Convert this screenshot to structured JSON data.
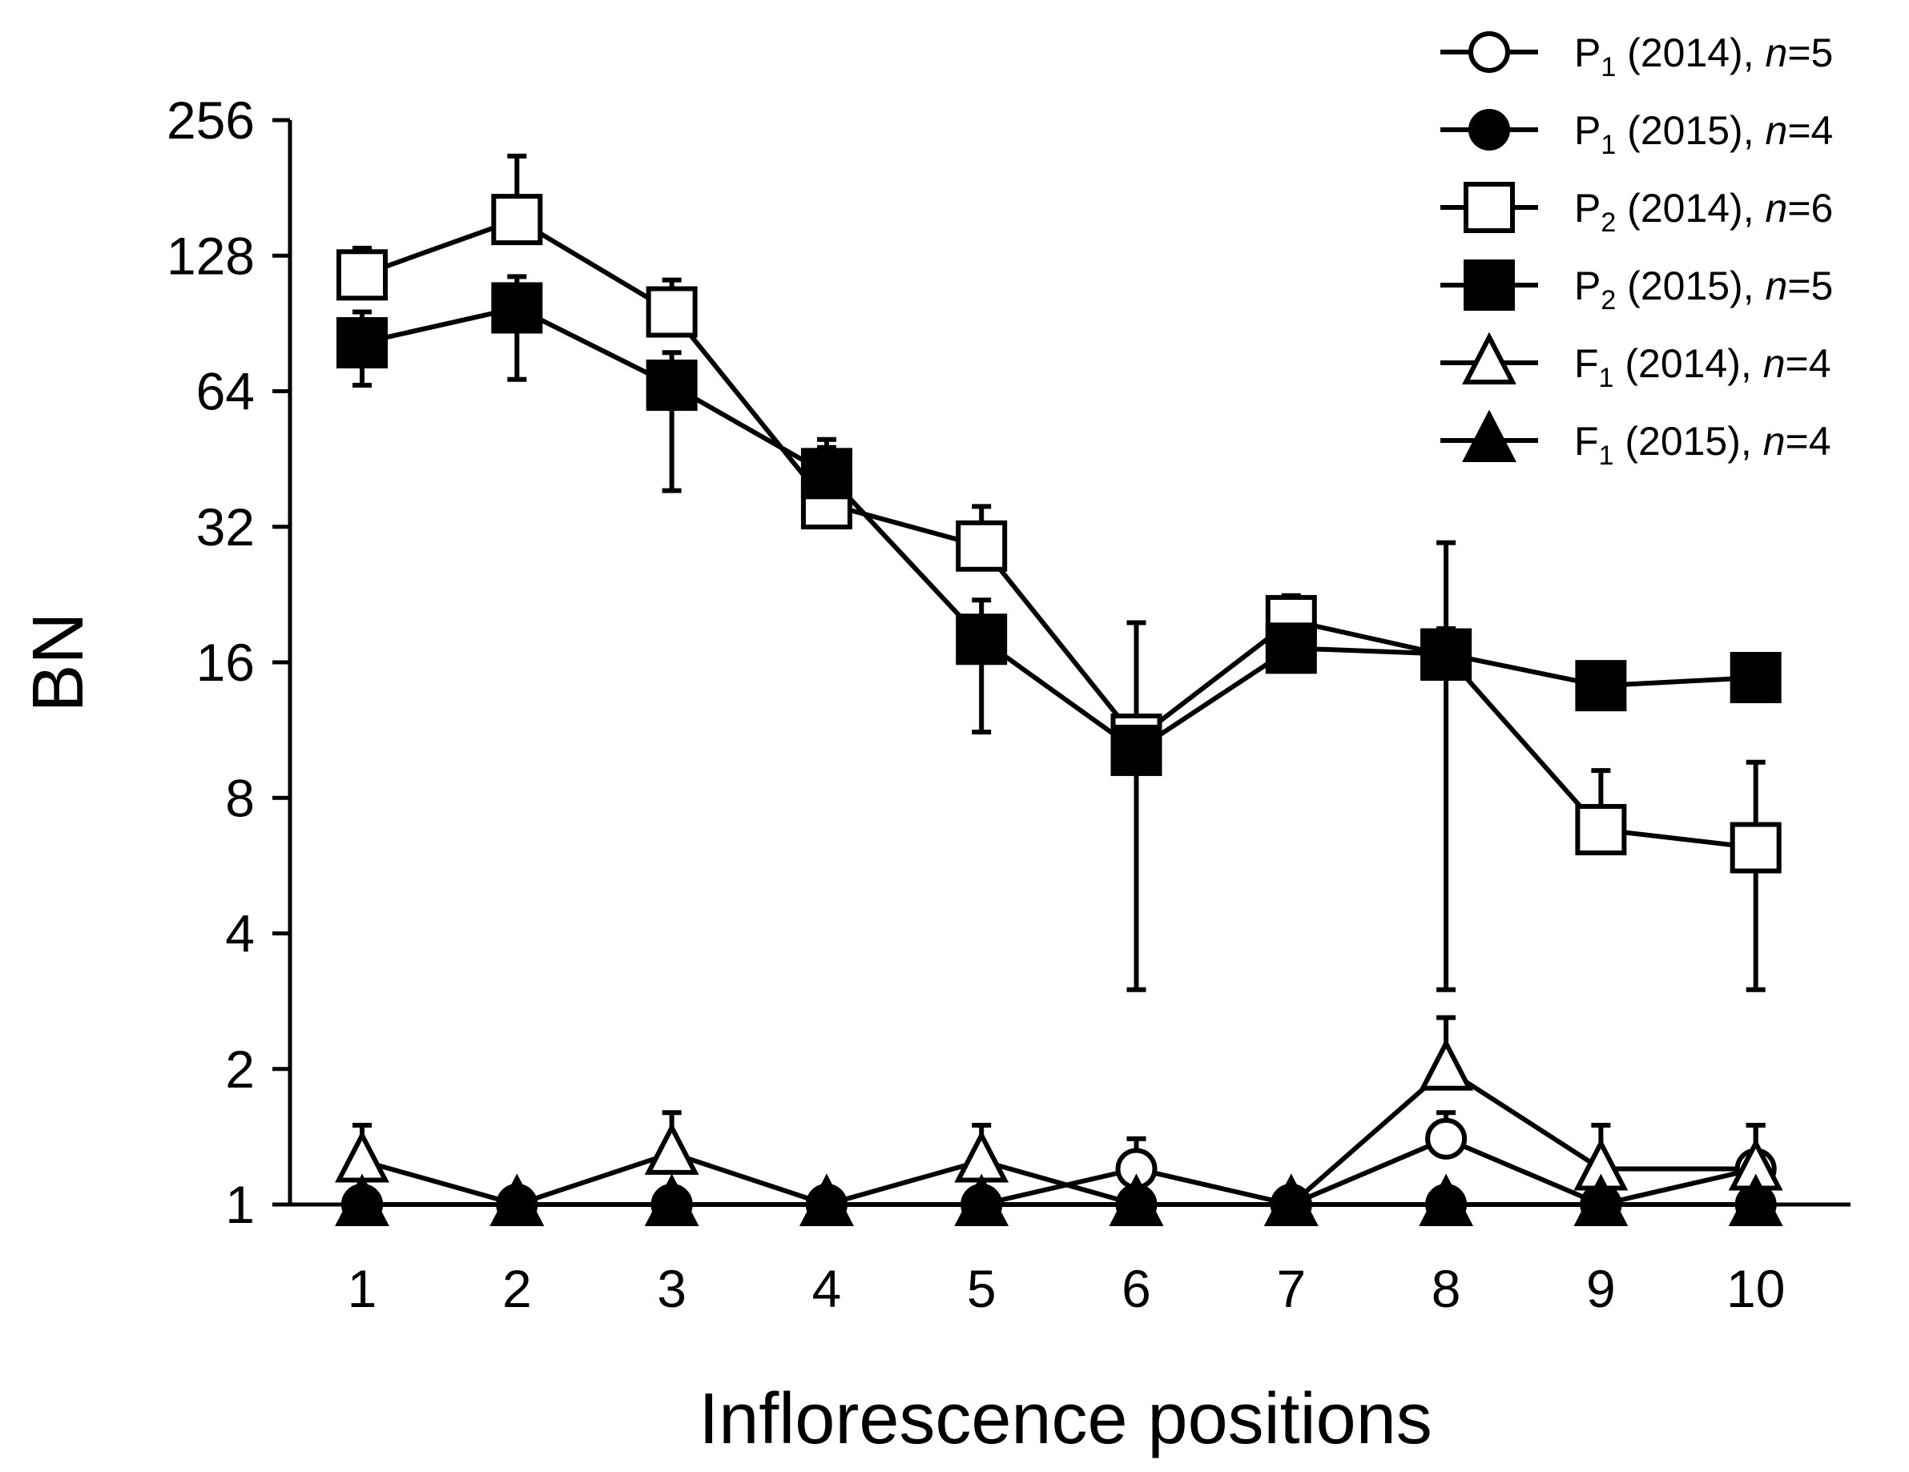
{
  "chart_data": {
    "type": "line",
    "title": "",
    "xlabel": "Inflorescence positions",
    "ylabel": "BN",
    "y_scale": "log2",
    "ylim": [
      1,
      256
    ],
    "yticks": [
      1,
      2,
      4,
      8,
      16,
      32,
      64,
      128,
      256
    ],
    "ytick_labels": [
      "1",
      "2",
      "4",
      "8",
      "16",
      "32",
      "64",
      "128",
      "256"
    ],
    "x": [
      1,
      2,
      3,
      4,
      5,
      6,
      7,
      8,
      9,
      10
    ],
    "xtick_labels": [
      "1",
      "2",
      "3",
      "4",
      "5",
      "6",
      "7",
      "8",
      "9",
      "10"
    ],
    "legend_position": "top-right",
    "series": [
      {
        "key": "p1-2014",
        "name": "P",
        "sub": "1",
        "year": "(2014),",
        "n_label": "n",
        "n_value": "=5",
        "marker": "circle",
        "filled": false,
        "values": [
          1,
          1,
          1,
          1,
          1,
          1.2,
          1,
          1.4,
          1,
          1.2
        ],
        "err_up": [
          null,
          null,
          null,
          null,
          null,
          1.4,
          null,
          1.6,
          null,
          1.5
        ]
      },
      {
        "key": "p1-2015",
        "name": "P",
        "sub": "1",
        "year": "(2015),",
        "n_label": "n",
        "n_value": "=4",
        "marker": "circle",
        "filled": true,
        "values": [
          1,
          1,
          1,
          1,
          1,
          1,
          1,
          1,
          1,
          1
        ],
        "err_up": [
          null,
          null,
          null,
          null,
          null,
          null,
          null,
          null,
          null,
          null
        ]
      },
      {
        "key": "p2-2014",
        "name": "P",
        "sub": "2",
        "year": "(2014),",
        "n_label": "n",
        "n_value": "=6",
        "marker": "square",
        "filled": false,
        "values": [
          116,
          154,
          96,
          36,
          29,
          10.8,
          19.8,
          16.6,
          6.8,
          6.2
        ],
        "err_up": [
          133,
          213,
          113,
          48,
          35.5,
          19.6,
          22.5,
          29.5,
          9.2,
          9.6
        ],
        "err_down": [
          null,
          null,
          null,
          null,
          null,
          null,
          null,
          null,
          null,
          3
        ]
      },
      {
        "key": "p2-2015",
        "name": "P",
        "sub": "2",
        "year": "(2015),",
        "n_label": "n",
        "n_value": "=5",
        "marker": "square",
        "filled": true,
        "values": [
          82,
          98,
          66,
          42,
          18,
          10.2,
          17.2,
          16.7,
          14.2,
          14.8
        ],
        "err_up": [
          96,
          115,
          78,
          50,
          22,
          12,
          19.5,
          19,
          15.8,
          16
        ],
        "err_down": [
          66,
          68,
          38.5,
          36,
          11.2,
          3,
          15.5,
          3,
          13,
          13.6
        ]
      },
      {
        "key": "f1-2014",
        "name": "F",
        "sub": "1",
        "year": "(2014),",
        "n_label": "n",
        "n_value": "=4",
        "marker": "triangle",
        "filled": false,
        "values": [
          1.25,
          1,
          1.3,
          1,
          1.25,
          1,
          1,
          2,
          1.2,
          1.2
        ],
        "err_up": [
          1.5,
          null,
          1.6,
          null,
          1.5,
          null,
          null,
          2.6,
          1.5,
          1.5
        ]
      },
      {
        "key": "f1-2015",
        "name": "F",
        "sub": "1",
        "year": "(2015),",
        "n_label": "n",
        "n_value": "=4",
        "marker": "triangle",
        "filled": true,
        "values": [
          1,
          1,
          1,
          1,
          1,
          1,
          1,
          1,
          1,
          1
        ],
        "err_up": [
          null,
          null,
          null,
          null,
          null,
          null,
          null,
          null,
          null,
          null
        ]
      }
    ]
  }
}
